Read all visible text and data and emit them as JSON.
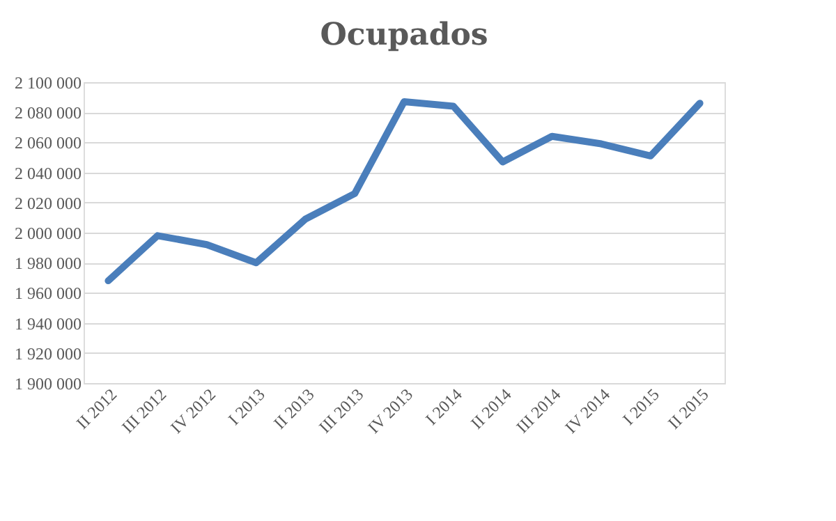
{
  "chart_data": {
    "type": "line",
    "title": "Ocupados",
    "categories": [
      "II 2012",
      "III 2012",
      "IV 2012",
      "I 2013",
      "II 2013",
      "III 2013",
      "IV 2013",
      "I 2014",
      "II 2014",
      "III 2014",
      "IV 2014",
      "I 2015",
      "II 2015"
    ],
    "series": [
      {
        "color": "#4a7ebb",
        "values": [
          1968000,
          1998000,
          1992000,
          1980000,
          2009000,
          2026000,
          2087000,
          2084000,
          2047000,
          2064000,
          2059000,
          2051000,
          2086000
        ]
      }
    ],
    "ylim": [
      1900000,
      2100000
    ],
    "yticks": [
      {
        "value": 1900000,
        "label": "1 900 000"
      },
      {
        "value": 1920000,
        "label": "1 920 000"
      },
      {
        "value": 1940000,
        "label": "1 940 000"
      },
      {
        "value": 1960000,
        "label": "1 960 000"
      },
      {
        "value": 1980000,
        "label": "1 980 000"
      },
      {
        "value": 2000000,
        "label": "2 000 000"
      },
      {
        "value": 2020000,
        "label": "2 020 000"
      },
      {
        "value": 2040000,
        "label": "2 040 000"
      },
      {
        "value": 2060000,
        "label": "2 060 000"
      },
      {
        "value": 2080000,
        "label": "2 080 000"
      },
      {
        "value": 2100000,
        "label": "2 100 000"
      }
    ],
    "grid": "y",
    "marker": "none",
    "line_style": "solid"
  }
}
